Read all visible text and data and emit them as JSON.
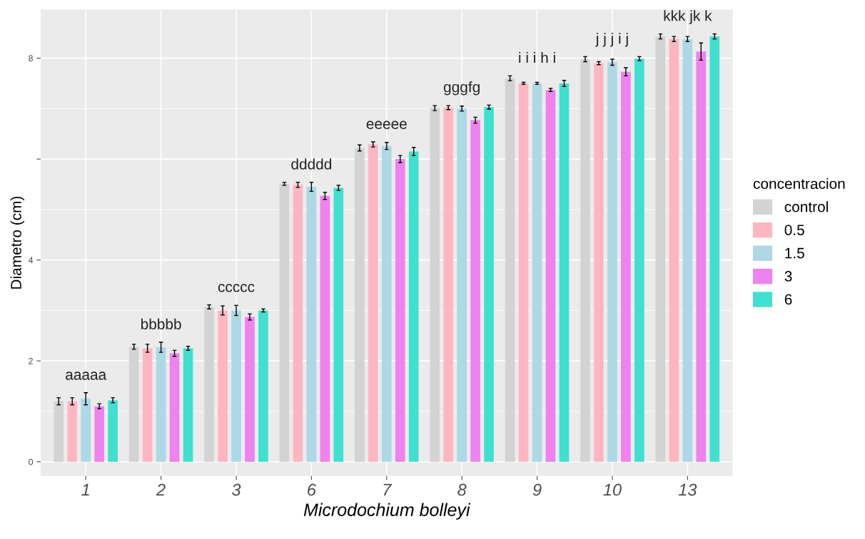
{
  "chart_data": {
    "type": "bar",
    "xlabel": "Microdochium bolleyi",
    "ylabel": "Diametro (cm)",
    "legend_title": "concentracion",
    "categories": [
      "1",
      "2",
      "3",
      "6",
      "7",
      "8",
      "9",
      "10",
      "13"
    ],
    "series": [
      {
        "name": "control",
        "color": "#d3d3d3",
        "values": [
          1.2,
          2.28,
          3.07,
          5.51,
          6.22,
          7.01,
          7.6,
          7.98,
          8.43
        ],
        "errors": [
          0.07,
          0.05,
          0.04,
          0.03,
          0.06,
          0.05,
          0.05,
          0.05,
          0.05
        ]
      },
      {
        "name": "0.5",
        "color": "#ffb6c1",
        "values": [
          1.2,
          2.25,
          3.0,
          5.49,
          6.29,
          7.02,
          7.5,
          7.9,
          8.38
        ],
        "errors": [
          0.07,
          0.08,
          0.09,
          0.05,
          0.05,
          0.04,
          0.02,
          0.03,
          0.05
        ]
      },
      {
        "name": "1.5",
        "color": "#add8e6",
        "values": [
          1.25,
          2.27,
          3.0,
          5.45,
          6.26,
          7.0,
          7.5,
          7.92,
          8.38
        ],
        "errors": [
          0.12,
          0.1,
          0.1,
          0.09,
          0.07,
          0.05,
          0.02,
          0.06,
          0.05
        ]
      },
      {
        "name": "3",
        "color": "#ee82ee",
        "values": [
          1.1,
          2.15,
          2.87,
          5.27,
          6.0,
          6.77,
          7.37,
          7.73,
          8.13
        ],
        "errors": [
          0.05,
          0.06,
          0.06,
          0.07,
          0.07,
          0.06,
          0.03,
          0.08,
          0.17
        ]
      },
      {
        "name": "6",
        "color": "#40e0d0",
        "values": [
          1.22,
          2.25,
          3.0,
          5.43,
          6.15,
          7.03,
          7.5,
          7.99,
          8.43
        ],
        "errors": [
          0.05,
          0.04,
          0.03,
          0.05,
          0.08,
          0.04,
          0.06,
          0.04,
          0.05
        ]
      }
    ],
    "annotations": [
      "aaaaa",
      "bbbbb",
      "ccccc",
      "ddddd",
      "eeeee",
      "gggfg",
      "i i i h i",
      "j j j i j",
      "kkk jk k"
    ],
    "ylim": [
      -0.28,
      8.96
    ],
    "yticks": [
      0,
      2,
      4,
      {
        "value": 6,
        "label": null
      },
      8
    ],
    "grid": true,
    "legend": "right"
  }
}
